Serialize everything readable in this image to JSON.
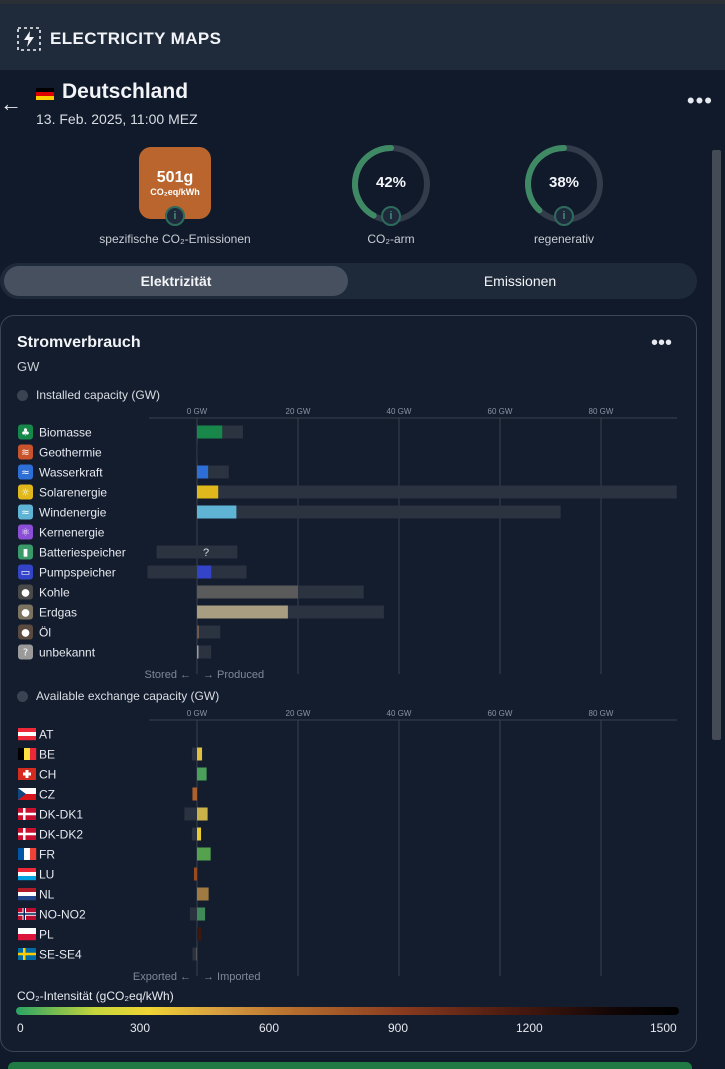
{
  "app": {
    "title": "ELECTRICITY MAPS"
  },
  "zone": {
    "name": "Deutschland",
    "datetime": "13. Feb. 2025, 11:00 MEZ"
  },
  "metrics": {
    "carbon_intensity": {
      "value": "501g",
      "unit": "CO₂eq/kWh",
      "label": "spezifische CO₂-Emissionen",
      "color": "#b9652d"
    },
    "low_carbon": {
      "value": "42%",
      "fraction": 0.42,
      "label": "CO₂-arm"
    },
    "renewable": {
      "value": "38%",
      "fraction": 0.38,
      "label": "regenerativ"
    }
  },
  "tabs": [
    {
      "label": "Elektrizität",
      "active": true
    },
    {
      "label": "Emissionen",
      "active": false
    }
  ],
  "card": {
    "title": "Stromverbrauch",
    "unit": "GW",
    "production_section": "Installed capacity (GW)",
    "exchange_section": "Available exchange capacity (GW)",
    "production_footer": {
      "left": "Stored ←",
      "right": "→ Produced"
    },
    "exchange_footer": {
      "left": "Exported ←",
      "right": "→ Imported"
    }
  },
  "chart_data": [
    {
      "type": "bar",
      "title": "Installed capacity (GW)",
      "xlabel": "",
      "ylabel": "",
      "xlim": [
        -10,
        95
      ],
      "ticks": [
        "0 GW",
        "20 GW",
        "40 GW",
        "60 GW",
        "80 GW"
      ],
      "tick_values": [
        0,
        20,
        40,
        60,
        80
      ],
      "categories": [
        "Biomasse",
        "Geothermie",
        "Wasserkraft",
        "Solarenergie",
        "Windenergie",
        "Kernenergie",
        "Batteriespeicher",
        "Pumpspeicher",
        "Kohle",
        "Erdgas",
        "Öl",
        "unbekannt"
      ],
      "series": [
        {
          "values": [
            5.0,
            0.0,
            2.2,
            4.2,
            7.8,
            0.0,
            0.0,
            2.8,
            20.0,
            18.0,
            0.4,
            0.3
          ]
        },
        {
          "values": [
            9.1,
            0.1,
            6.3,
            95.0,
            72.0,
            0.0,
            8.0,
            9.8,
            33.0,
            37.0,
            4.6,
            2.8
          ]
        }
      ],
      "negative_capacity": [
        0,
        0,
        0,
        0,
        0,
        0,
        -8.0,
        -9.8,
        0,
        0,
        0,
        0
      ],
      "unknown_marker": {
        "category": "Batteriespeicher",
        "text": "?"
      },
      "bar_colors": [
        "#17874a",
        "#8a8a8a",
        "#2d6fd6",
        "#e0b81c",
        "#5fb4d6",
        "#888888",
        "#8a8a8a",
        "#3344c9",
        "#5a5a5a",
        "#a89d80",
        "#6d5a4d",
        "#9a9a9a"
      ]
    },
    {
      "type": "bar",
      "title": "Available exchange capacity (GW)",
      "xlim": [
        -10,
        95
      ],
      "ticks": [
        "0 GW",
        "20 GW",
        "40 GW",
        "60 GW",
        "80 GW"
      ],
      "tick_values": [
        0,
        20,
        40,
        60,
        80
      ],
      "categories": [
        "AT",
        "BE",
        "CH",
        "CZ",
        "DK-DK1",
        "DK-DK2",
        "FR",
        "LU",
        "NL",
        "NO-NO2",
        "PL",
        "SE-SE4"
      ],
      "values": [
        0.0,
        1.0,
        1.9,
        -0.9,
        2.1,
        0.8,
        2.7,
        -0.6,
        2.3,
        1.6,
        0.8,
        -0.2
      ],
      "capacity_min": [
        0.0,
        -1.0,
        0.0,
        -0.9,
        -2.5,
        -1.0,
        0.0,
        -0.6,
        0.0,
        -1.4,
        0.0,
        -0.9
      ],
      "capacity_max": [
        0.0,
        1.0,
        1.9,
        0.0,
        2.1,
        0.8,
        2.7,
        0.0,
        2.3,
        1.6,
        0.8,
        0.0
      ],
      "bar_colors": [
        "#000000",
        "#e0c03c",
        "#4aa05a",
        "#b0602a",
        "#c9b24a",
        "#e8cc30",
        "#55a24e",
        "#9a4a20",
        "#a07a40",
        "#3f8a58",
        "#3a1a10",
        "#555555"
      ]
    }
  ],
  "colors": {
    "bar_bg": "#2b3340",
    "grid": "#38414f",
    "info": "#5dc59a",
    "gauge_fill": "#3f8a65"
  },
  "legend": {
    "title": "CO₂-Intensität (gCO₂eq/kWh)",
    "ticks": [
      "0",
      "300",
      "600",
      "900",
      "1200",
      "1500"
    ]
  },
  "icons": {
    "Biomasse": "leaf-icon",
    "Geothermie": "heat-icon",
    "Wasserkraft": "water-icon",
    "Solarenergie": "sun-icon",
    "Windenergie": "wind-icon",
    "Kernenergie": "atom-icon",
    "Batteriespeicher": "battery-icon",
    "Pumpspeicher": "pump-icon",
    "Kohle": "coal-icon",
    "Erdgas": "gas-icon",
    "Öl": "oil-icon",
    "unbekannt": "unknown-icon"
  }
}
